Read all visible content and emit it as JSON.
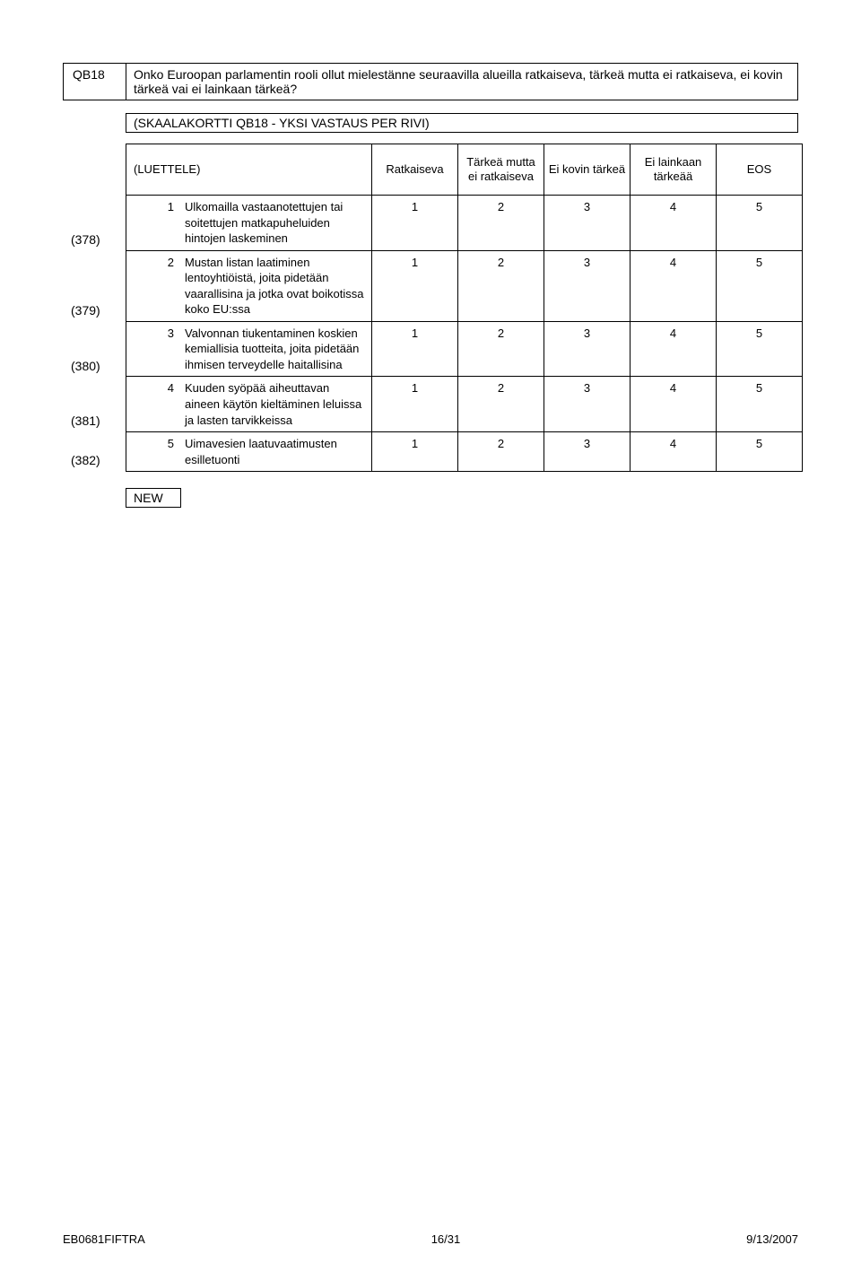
{
  "question": {
    "code": "QB18",
    "text": "Onko Euroopan parlamentin rooli ollut mielestänne seuraavilla alueilla ratkaiseva, tärkeä mutta ei ratkaiseva, ei kovin tärkeä vai ei lainkaan tärkeä?"
  },
  "instruction": "(SKAALAKORTTI QB18 - YKSI VASTAUS PER RIVI)",
  "headers": {
    "col1": "(LUETTELE)",
    "col2": "Ratkaiseva",
    "col3": "Tärkeä mutta ei ratkaiseva",
    "col4": "Ei kovin tärkeä",
    "col5": "Ei lainkaan tärkeää",
    "col6": "EOS"
  },
  "rows": [
    {
      "margin": "(378)",
      "idx": "1",
      "desc": "Ulkomailla vastaanotettujen tai soitettujen matkapuheluiden hintojen laskeminen",
      "v": [
        "1",
        "2",
        "3",
        "4",
        "5"
      ]
    },
    {
      "margin": "(379)",
      "idx": "2",
      "desc": "Mustan listan laatiminen lentoyhtiöistä, joita pidetään vaarallisina ja jotka ovat boikotissa koko EU:ssa",
      "v": [
        "1",
        "2",
        "3",
        "4",
        "5"
      ]
    },
    {
      "margin": "(380)",
      "idx": "3",
      "desc": "Valvonnan tiukentaminen koskien kemiallisia tuotteita, joita pidetään ihmisen terveydelle haitallisina",
      "v": [
        "1",
        "2",
        "3",
        "4",
        "5"
      ]
    },
    {
      "margin": "(381)",
      "idx": "4",
      "desc": "Kuuden syöpää aiheuttavan aineen käytön kieltäminen leluissa ja lasten tarvikkeissa",
      "v": [
        "1",
        "2",
        "3",
        "4",
        "5"
      ]
    },
    {
      "margin": "(382)",
      "idx": "5",
      "desc": "Uimavesien laatuvaatimusten esilletuonti",
      "v": [
        "1",
        "2",
        "3",
        "4",
        "5"
      ]
    }
  ],
  "new_label": "NEW",
  "footer": {
    "left": "EB0681FIFTRA",
    "center": "16/31",
    "right": "9/13/2007"
  }
}
